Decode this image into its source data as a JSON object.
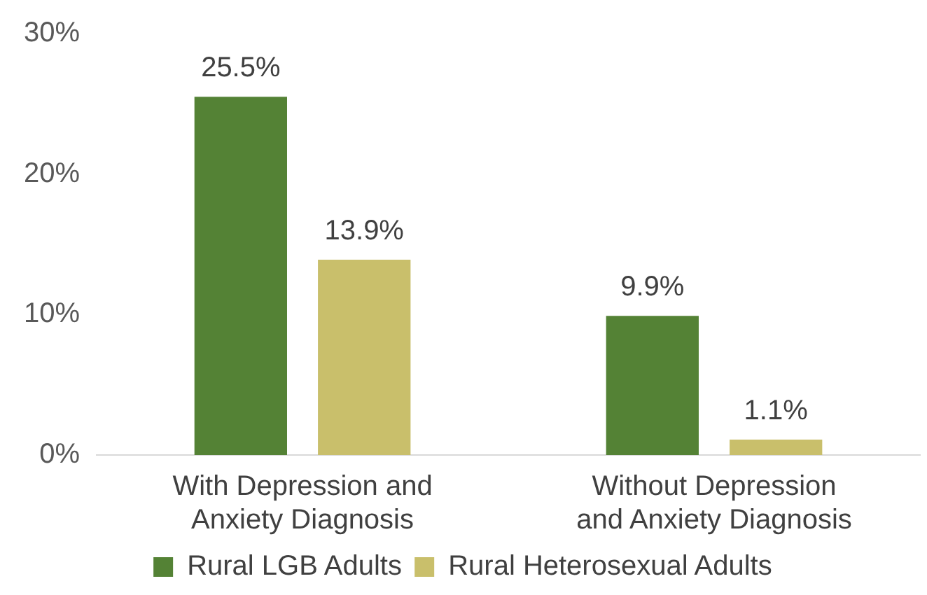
{
  "chart_data": {
    "type": "bar",
    "categories": [
      "With Depression and Anxiety Diagnosis",
      "Without Depression and Anxiety Diagnosis"
    ],
    "series": [
      {
        "name": "Rural LGB Adults",
        "color": "#548235",
        "values": [
          25.5,
          9.9
        ],
        "value_labels": [
          "25.5%",
          "9.9%"
        ]
      },
      {
        "name": "Rural Heterosexual Adults",
        "color": "#c9bf6b",
        "values": [
          13.9,
          1.1
        ],
        "value_labels": [
          "13.9%",
          "1.1%"
        ]
      }
    ],
    "ylim": [
      0,
      30
    ],
    "yticks": [
      {
        "value": 0,
        "label": "0%"
      },
      {
        "value": 10,
        "label": "10%"
      },
      {
        "value": 20,
        "label": "20%"
      },
      {
        "value": 30,
        "label": "30%"
      }
    ],
    "grid": false,
    "legend": "bottom"
  }
}
